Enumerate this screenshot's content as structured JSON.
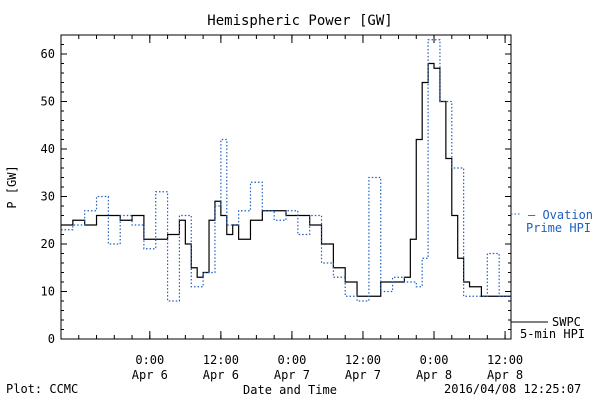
{
  "header": {
    "title": "Hemispheric Power [GW]"
  },
  "footer": {
    "plot_credit": "Plot: CCMC",
    "timestamp": "2016/04/08 12:25:07"
  },
  "colors": {
    "swpc": "#000000",
    "ovation": "#2060c0",
    "axis": "#000000"
  },
  "chart_data": {
    "type": "line",
    "title": "Hemispheric Power [GW]",
    "xlabel": "Date and Time",
    "ylabel": "P [GW]",
    "ylim": [
      0,
      64
    ],
    "xlim": [
      "2016-04-05 09:00",
      "2016-04-08 13:00"
    ],
    "yticks": [
      0,
      10,
      20,
      30,
      40,
      50,
      60
    ],
    "xticks": [
      {
        "x": "2016-04-06 00:00",
        "line1": "0:00",
        "line2": "Apr 6"
      },
      {
        "x": "2016-04-06 12:00",
        "line1": "12:00",
        "line2": "Apr 6"
      },
      {
        "x": "2016-04-07 00:00",
        "line1": "0:00",
        "line2": "Apr 7"
      },
      {
        "x": "2016-04-07 12:00",
        "line1": "12:00",
        "line2": "Apr 7"
      },
      {
        "x": "2016-04-08 00:00",
        "line1": "0:00",
        "line2": "Apr 8"
      },
      {
        "x": "2016-04-08 12:00",
        "line1": "12:00",
        "line2": "Apr 8"
      }
    ],
    "grid": false,
    "legend_position": "right",
    "series": [
      {
        "name": "SWPC 5-min HPI",
        "legend_lines": [
          "SWPC",
          "5-min HPI"
        ],
        "style": "solid",
        "color": "#000000",
        "x": [
          "2016-04-05 09:00",
          "2016-04-05 11:00",
          "2016-04-05 13:00",
          "2016-04-05 15:00",
          "2016-04-05 17:00",
          "2016-04-05 19:00",
          "2016-04-05 21:00",
          "2016-04-05 23:00",
          "2016-04-06 01:00",
          "2016-04-06 03:00",
          "2016-04-06 05:00",
          "2016-04-06 06:00",
          "2016-04-06 07:00",
          "2016-04-06 08:00",
          "2016-04-06 09:00",
          "2016-04-06 10:00",
          "2016-04-06 11:00",
          "2016-04-06 12:00",
          "2016-04-06 13:00",
          "2016-04-06 14:00",
          "2016-04-06 15:00",
          "2016-04-06 17:00",
          "2016-04-06 19:00",
          "2016-04-06 21:00",
          "2016-04-06 23:00",
          "2016-04-07 01:00",
          "2016-04-07 03:00",
          "2016-04-07 05:00",
          "2016-04-07 07:00",
          "2016-04-07 09:00",
          "2016-04-07 11:00",
          "2016-04-07 13:00",
          "2016-04-07 15:00",
          "2016-04-07 17:00",
          "2016-04-07 18:00",
          "2016-04-07 19:00",
          "2016-04-07 20:00",
          "2016-04-07 21:00",
          "2016-04-07 22:00",
          "2016-04-07 23:00",
          "2016-04-08 00:00",
          "2016-04-08 01:00",
          "2016-04-08 02:00",
          "2016-04-08 03:00",
          "2016-04-08 04:00",
          "2016-04-08 05:00",
          "2016-04-08 06:00",
          "2016-04-08 08:00",
          "2016-04-08 10:00",
          "2016-04-08 13:00"
        ],
        "values": [
          24,
          25,
          24,
          26,
          26,
          25,
          26,
          21,
          21,
          22,
          25,
          20,
          15,
          13,
          14,
          25,
          29,
          26,
          22,
          24,
          21,
          25,
          27,
          27,
          26,
          26,
          24,
          20,
          15,
          12,
          9,
          9,
          12,
          12,
          12,
          13,
          21,
          42,
          54,
          58,
          57,
          50,
          38,
          26,
          17,
          12,
          11,
          9,
          9,
          9
        ]
      },
      {
        "name": "Ovation Prime HPI",
        "legend_lines": [
          "Ovation",
          "Prime HPI"
        ],
        "style": "dotted",
        "color": "#2060c0",
        "x": [
          "2016-04-05 09:00",
          "2016-04-05 11:00",
          "2016-04-05 13:00",
          "2016-04-05 15:00",
          "2016-04-05 17:00",
          "2016-04-05 19:00",
          "2016-04-05 21:00",
          "2016-04-05 23:00",
          "2016-04-06 01:00",
          "2016-04-06 03:00",
          "2016-04-06 05:00",
          "2016-04-06 07:00",
          "2016-04-06 09:00",
          "2016-04-06 11:00",
          "2016-04-06 12:00",
          "2016-04-06 13:00",
          "2016-04-06 15:00",
          "2016-04-06 17:00",
          "2016-04-06 19:00",
          "2016-04-06 21:00",
          "2016-04-06 23:00",
          "2016-04-07 01:00",
          "2016-04-07 03:00",
          "2016-04-07 05:00",
          "2016-04-07 07:00",
          "2016-04-07 09:00",
          "2016-04-07 11:00",
          "2016-04-07 13:00",
          "2016-04-07 15:00",
          "2016-04-07 17:00",
          "2016-04-07 19:00",
          "2016-04-07 21:00",
          "2016-04-07 22:00",
          "2016-04-07 23:00",
          "2016-04-08 01:00",
          "2016-04-08 03:00",
          "2016-04-08 05:00",
          "2016-04-08 07:00",
          "2016-04-08 09:00",
          "2016-04-08 11:00",
          "2016-04-08 13:00"
        ],
        "values": [
          23,
          24,
          27,
          30,
          20,
          26,
          24,
          19,
          31,
          8,
          26,
          11,
          14,
          28,
          42,
          24,
          27,
          33,
          27,
          25,
          27,
          22,
          26,
          16,
          13,
          9,
          8,
          34,
          10,
          13,
          12,
          11,
          17,
          63,
          50,
          36,
          9,
          9,
          18,
          9,
          9
        ]
      }
    ]
  }
}
